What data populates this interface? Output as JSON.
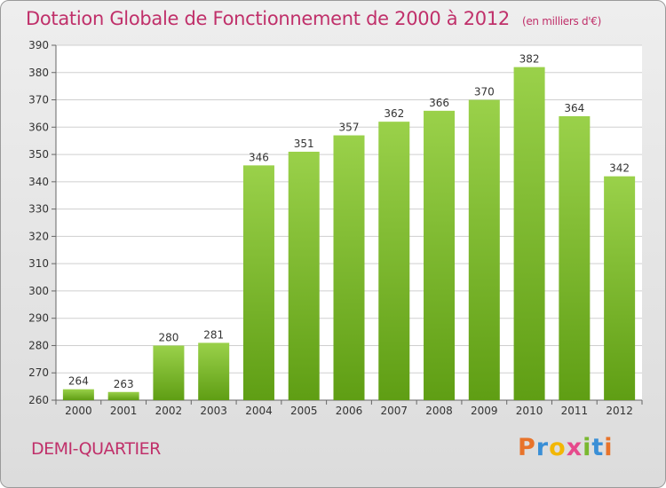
{
  "chart_data": {
    "type": "bar",
    "title": "Dotation Globale de Fonctionnement de 2000 à 2012",
    "subtitle": "(en milliers d'€)",
    "categories": [
      "2000",
      "2001",
      "2002",
      "2003",
      "2004",
      "2005",
      "2006",
      "2007",
      "2008",
      "2009",
      "2010",
      "2011",
      "2012"
    ],
    "values": [
      264,
      263,
      280,
      281,
      346,
      351,
      357,
      362,
      366,
      370,
      382,
      364,
      342
    ],
    "ylim": [
      260,
      390
    ],
    "yticks": [
      260,
      270,
      280,
      290,
      300,
      310,
      320,
      330,
      340,
      350,
      360,
      370,
      380,
      390
    ],
    "grid": true,
    "data_labels": true,
    "bar_color": "#7fbf2a",
    "xlabel": "",
    "ylabel": ""
  },
  "commune": "DEMI-QUARTIER",
  "logo": {
    "letters": [
      "P",
      "r",
      "o",
      "x",
      "i",
      "t",
      "i"
    ],
    "colors": [
      "#e8732a",
      "#3a8fd6",
      "#f2b705",
      "#e64a8c",
      "#7ab830",
      "#3a8fd6",
      "#e8732a"
    ]
  },
  "colors": {
    "title": "#c0306a",
    "grid": "#cfcfcf"
  }
}
